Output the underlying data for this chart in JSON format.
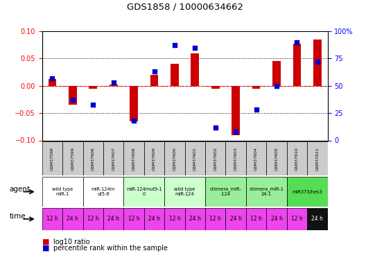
{
  "title": "GDS1858 / 10000634662",
  "samples": [
    "GSM37598",
    "GSM37599",
    "GSM37606",
    "GSM37607",
    "GSM37608",
    "GSM37609",
    "GSM37600",
    "GSM37601",
    "GSM37602",
    "GSM37603",
    "GSM37604",
    "GSM37605",
    "GSM37610",
    "GSM37611"
  ],
  "log10_ratio": [
    0.012,
    -0.035,
    -0.005,
    0.002,
    -0.065,
    0.02,
    0.04,
    0.06,
    -0.006,
    -0.09,
    -0.005,
    0.046,
    0.077,
    0.085
  ],
  "percentile_rank": [
    57,
    37,
    33,
    53,
    18,
    63,
    87,
    85,
    12,
    8,
    28,
    50,
    90,
    72
  ],
  "ylim_left": [
    -0.1,
    0.1
  ],
  "ylim_right": [
    0,
    100
  ],
  "yticks_left": [
    -0.1,
    -0.05,
    0.0,
    0.05,
    0.1
  ],
  "yticks_right": [
    0,
    25,
    50,
    75,
    100
  ],
  "bar_color": "#cc0000",
  "dot_color": "#0000cc",
  "agent_groups": [
    {
      "label": "wild type\nmiR-1",
      "cols": [
        0,
        1
      ],
      "color": "#ffffff"
    },
    {
      "label": "miR-124m\nut5-6",
      "cols": [
        2,
        3
      ],
      "color": "#ffffff"
    },
    {
      "label": "miR-124mut9-1\n0",
      "cols": [
        4,
        5
      ],
      "color": "#ccffcc"
    },
    {
      "label": "wild type\nmiR-124",
      "cols": [
        6,
        7
      ],
      "color": "#ccffcc"
    },
    {
      "label": "chimera_miR-\n-124",
      "cols": [
        8,
        9
      ],
      "color": "#99ee99"
    },
    {
      "label": "chimera_miR-1\n24-1",
      "cols": [
        10,
        11
      ],
      "color": "#99ee99"
    },
    {
      "label": "miR373/hes3",
      "cols": [
        12,
        13
      ],
      "color": "#55dd55"
    }
  ],
  "time_labels": [
    "12 h",
    "24 h",
    "12 h",
    "24 h",
    "12 h",
    "24 h",
    "12 h",
    "24 h",
    "12 h",
    "24 h",
    "12 h",
    "24 h",
    "12 h",
    "24 h"
  ],
  "time_color": "#ee44ee",
  "sample_bg_color": "#cccccc",
  "axis_label_agent": "agent",
  "axis_label_time": "time",
  "legend_bar_label": "log10 ratio",
  "legend_dot_label": "percentile rank within the sample"
}
